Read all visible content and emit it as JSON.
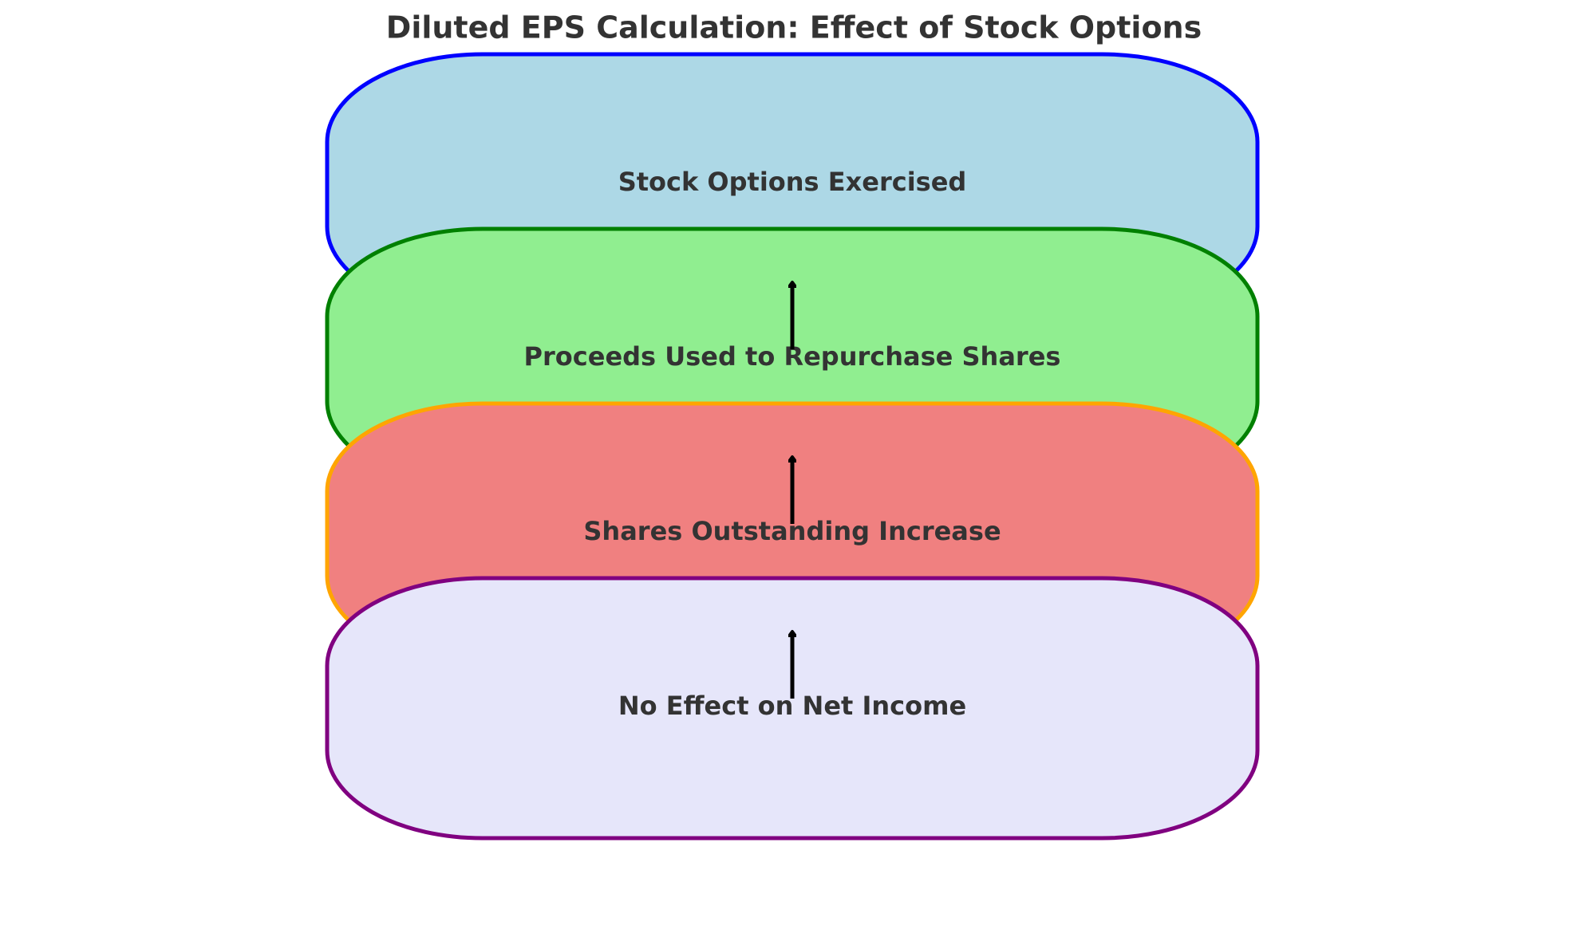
{
  "title": "Diluted EPS Calculation: Effect of Stock Options",
  "steps": [
    {
      "label": "Stock Options Exercised",
      "fill": "#add8e6",
      "stroke": "#0000ff"
    },
    {
      "label": "Proceeds Used to Repurchase Shares",
      "fill": "#90ee90",
      "stroke": "#008000"
    },
    {
      "label": "Shares Outstanding Increase",
      "fill": "#f08080",
      "stroke": "#ffa500"
    },
    {
      "label": "No Effect on Net Income",
      "fill": "#e6e6fa",
      "stroke": "#800080"
    }
  ],
  "arrow_color": "#000000",
  "text_color": "#333333"
}
